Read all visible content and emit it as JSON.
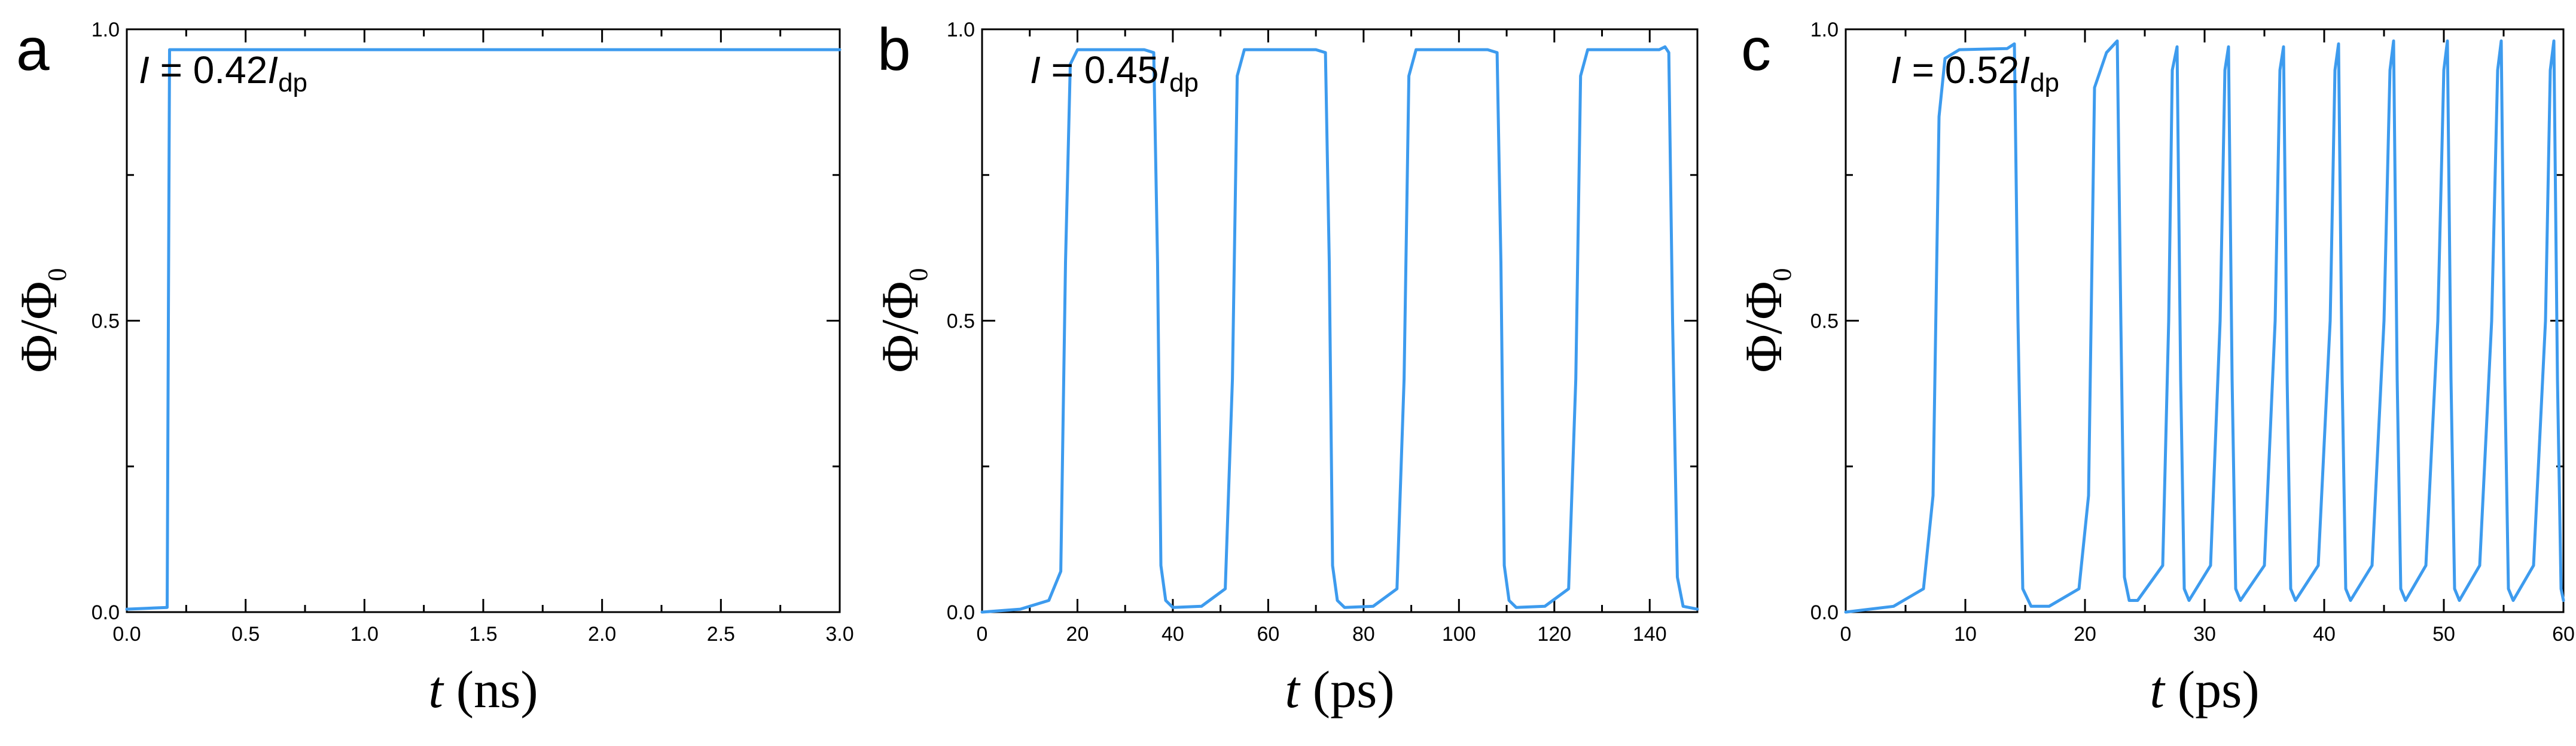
{
  "colors": {
    "line": "#3d9bee",
    "axes": "#000000",
    "background": "#ffffff"
  },
  "chart_data": [
    {
      "type": "line",
      "panel": "a",
      "annotation": {
        "I": "I",
        "value": " = 0.42",
        "Idp": "I",
        "sub": "dp"
      },
      "xlabel": {
        "var": "t",
        "unit": " (ns)"
      },
      "ylabel": {
        "main": "Φ/Φ",
        "sub": "0"
      },
      "xlim": [
        0,
        3.0
      ],
      "ylim": [
        0,
        1.0
      ],
      "xticks": [
        0.0,
        0.5,
        1.0,
        1.5,
        2.0,
        2.5,
        3.0
      ],
      "xtick_labels": [
        "0.0",
        "0.5",
        "1.0",
        "1.5",
        "2.0",
        "2.5",
        "3.0"
      ],
      "yticks": [
        0.0,
        0.5,
        1.0
      ],
      "ytick_labels": [
        "0.0",
        "0.5",
        "1.0"
      ],
      "series": [
        {
          "x": [
            0,
            0.17,
            0.175,
            0.18,
            3.0
          ],
          "y": [
            0.005,
            0.008,
            0.5,
            0.965,
            0.965
          ]
        }
      ]
    },
    {
      "type": "line",
      "panel": "b",
      "annotation": {
        "I": "I",
        "value": " = 0.45",
        "Idp": "I",
        "sub": "dp"
      },
      "xlabel": {
        "var": "t",
        "unit": " (ps)"
      },
      "ylabel": {
        "main": "Φ/Φ",
        "sub": "0"
      },
      "xlim": [
        0,
        150
      ],
      "ylim": [
        0,
        1.0
      ],
      "xticks": [
        0,
        20,
        40,
        60,
        80,
        100,
        120,
        140
      ],
      "xtick_labels": [
        "0",
        "20",
        "40",
        "60",
        "80",
        "100",
        "120",
        "140"
      ],
      "yticks": [
        0.0,
        0.5,
        1.0
      ],
      "ytick_labels": [
        "0.0",
        "0.5",
        "1.0"
      ],
      "series": [
        {
          "x": [
            0,
            8,
            14,
            16.5,
            17.5,
            18.5,
            20,
            34,
            36,
            36.8,
            37.5,
            38.5,
            40,
            46,
            51,
            52.5,
            53.5,
            55,
            70,
            72,
            72.8,
            73.5,
            74.5,
            76,
            82,
            87,
            88.5,
            89.5,
            91,
            106,
            108,
            108.8,
            109.5,
            110.5,
            112,
            118,
            123,
            124.5,
            125.5,
            127,
            142,
            143.2,
            144,
            144.8,
            145.8,
            147,
            150
          ],
          "y": [
            0.0,
            0.005,
            0.02,
            0.07,
            0.6,
            0.94,
            0.965,
            0.965,
            0.96,
            0.6,
            0.08,
            0.02,
            0.008,
            0.01,
            0.04,
            0.4,
            0.92,
            0.965,
            0.965,
            0.96,
            0.6,
            0.08,
            0.02,
            0.008,
            0.01,
            0.04,
            0.4,
            0.92,
            0.965,
            0.965,
            0.96,
            0.6,
            0.08,
            0.02,
            0.008,
            0.01,
            0.04,
            0.4,
            0.92,
            0.965,
            0.965,
            0.97,
            0.96,
            0.5,
            0.06,
            0.01,
            0.005
          ]
        }
      ]
    },
    {
      "type": "line",
      "panel": "c",
      "annotation": {
        "I": "I",
        "value": " = 0.52",
        "Idp": "I",
        "sub": "dp"
      },
      "xlabel": {
        "var": "t",
        "unit": " (ps)"
      },
      "ylabel": {
        "main": "Φ/Φ",
        "sub": "0"
      },
      "xlim": [
        0,
        60
      ],
      "ylim": [
        0,
        1.0
      ],
      "xticks": [
        0,
        10,
        20,
        30,
        40,
        50,
        60
      ],
      "xtick_labels": [
        "0",
        "10",
        "20",
        "30",
        "40",
        "50",
        "60"
      ],
      "yticks": [
        0.0,
        0.5,
        1.0
      ],
      "ytick_labels": [
        "0.0",
        "0.5",
        "1.0"
      ],
      "series": [
        {
          "x": [
            0,
            4,
            6.5,
            7.3,
            7.8,
            8.3,
            9.5,
            13.5,
            14.1,
            14.4,
            14.8,
            15.5,
            17,
            19.5,
            20.3,
            20.8,
            21.8,
            22.7,
            23.0,
            23.3,
            23.7,
            24.4,
            26.5,
            27.0,
            27.3,
            27.7,
            28.0,
            28.3,
            28.7,
            30.5,
            31.3,
            31.7,
            32.0,
            32.3,
            32.6,
            33.0,
            35.0,
            35.9,
            36.3,
            36.6,
            36.9,
            37.2,
            37.6,
            39.5,
            40.5,
            40.9,
            41.2,
            41.5,
            41.8,
            42.2,
            44.0,
            45.0,
            45.5,
            45.8,
            46.1,
            46.4,
            46.8,
            48.5,
            49.5,
            50.0,
            50.3,
            50.6,
            50.9,
            51.3,
            53.0,
            54.0,
            54.5,
            54.8,
            55.1,
            55.4,
            55.8,
            57.5,
            58.5,
            58.9,
            59.2,
            59.5,
            59.8,
            60.0
          ],
          "y": [
            0.0,
            0.01,
            0.04,
            0.2,
            0.85,
            0.95,
            0.965,
            0.967,
            0.975,
            0.5,
            0.04,
            0.01,
            0.01,
            0.04,
            0.2,
            0.9,
            0.96,
            0.98,
            0.5,
            0.06,
            0.02,
            0.02,
            0.08,
            0.5,
            0.93,
            0.97,
            0.4,
            0.04,
            0.02,
            0.08,
            0.5,
            0.93,
            0.97,
            0.4,
            0.04,
            0.02,
            0.08,
            0.5,
            0.93,
            0.97,
            0.4,
            0.04,
            0.02,
            0.08,
            0.5,
            0.93,
            0.975,
            0.4,
            0.04,
            0.02,
            0.08,
            0.5,
            0.93,
            0.98,
            0.4,
            0.04,
            0.02,
            0.08,
            0.5,
            0.93,
            0.98,
            0.4,
            0.04,
            0.02,
            0.08,
            0.5,
            0.93,
            0.98,
            0.4,
            0.04,
            0.02,
            0.08,
            0.5,
            0.93,
            0.98,
            0.4,
            0.04,
            0.02
          ]
        }
      ]
    }
  ]
}
